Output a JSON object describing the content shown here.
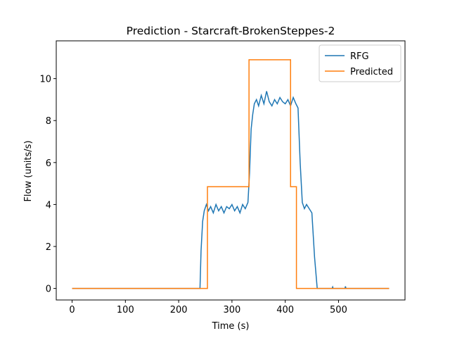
{
  "chart_data": {
    "type": "line",
    "title": "Prediction - Starcraft-BrokenSteppes-2",
    "x_label": "Time (s)",
    "y_label": "Flow (units/s)",
    "xlim": [
      -29.75,
      624.75
    ],
    "ylim": [
      -0.55,
      11.8
    ],
    "xticks": [
      0,
      100,
      200,
      300,
      400,
      500
    ],
    "yticks": [
      0,
      2,
      4,
      6,
      8,
      10
    ],
    "legend": "upper right",
    "series": [
      {
        "name": "RFG",
        "color": "#1f77b4",
        "x": [
          0,
          240,
          242,
          245,
          248,
          252,
          256,
          260,
          265,
          270,
          275,
          280,
          285,
          290,
          295,
          300,
          305,
          310,
          315,
          320,
          325,
          330,
          333,
          336,
          339,
          342,
          346,
          350,
          355,
          360,
          365,
          370,
          375,
          380,
          385,
          390,
          395,
          400,
          405,
          410,
          415,
          420,
          424,
          428,
          432,
          436,
          440,
          445,
          450,
          455,
          460,
          488,
          489,
          490,
          512,
          513,
          514,
          595
        ],
        "values": [
          0,
          0,
          1.8,
          3.2,
          3.7,
          4.0,
          3.7,
          3.9,
          3.6,
          4.0,
          3.7,
          3.9,
          3.6,
          3.9,
          3.8,
          4.0,
          3.7,
          3.9,
          3.6,
          4.0,
          3.8,
          4.1,
          5.5,
          7.6,
          8.3,
          8.8,
          9.0,
          8.7,
          9.2,
          8.8,
          9.4,
          8.9,
          8.7,
          9.0,
          8.8,
          9.1,
          8.9,
          8.8,
          9.0,
          8.7,
          9.1,
          8.8,
          8.6,
          6.0,
          4.1,
          3.8,
          4.0,
          3.8,
          3.6,
          1.5,
          0,
          0,
          0.07,
          0,
          0,
          0.1,
          0,
          0
        ]
      },
      {
        "name": "Predicted",
        "color": "#ff7f0e",
        "x": [
          0,
          254,
          254,
          332,
          332,
          410,
          410,
          421,
          421,
          595
        ],
        "values": [
          0,
          0,
          4.85,
          4.85,
          10.9,
          10.9,
          4.85,
          4.85,
          0,
          0
        ]
      }
    ]
  }
}
